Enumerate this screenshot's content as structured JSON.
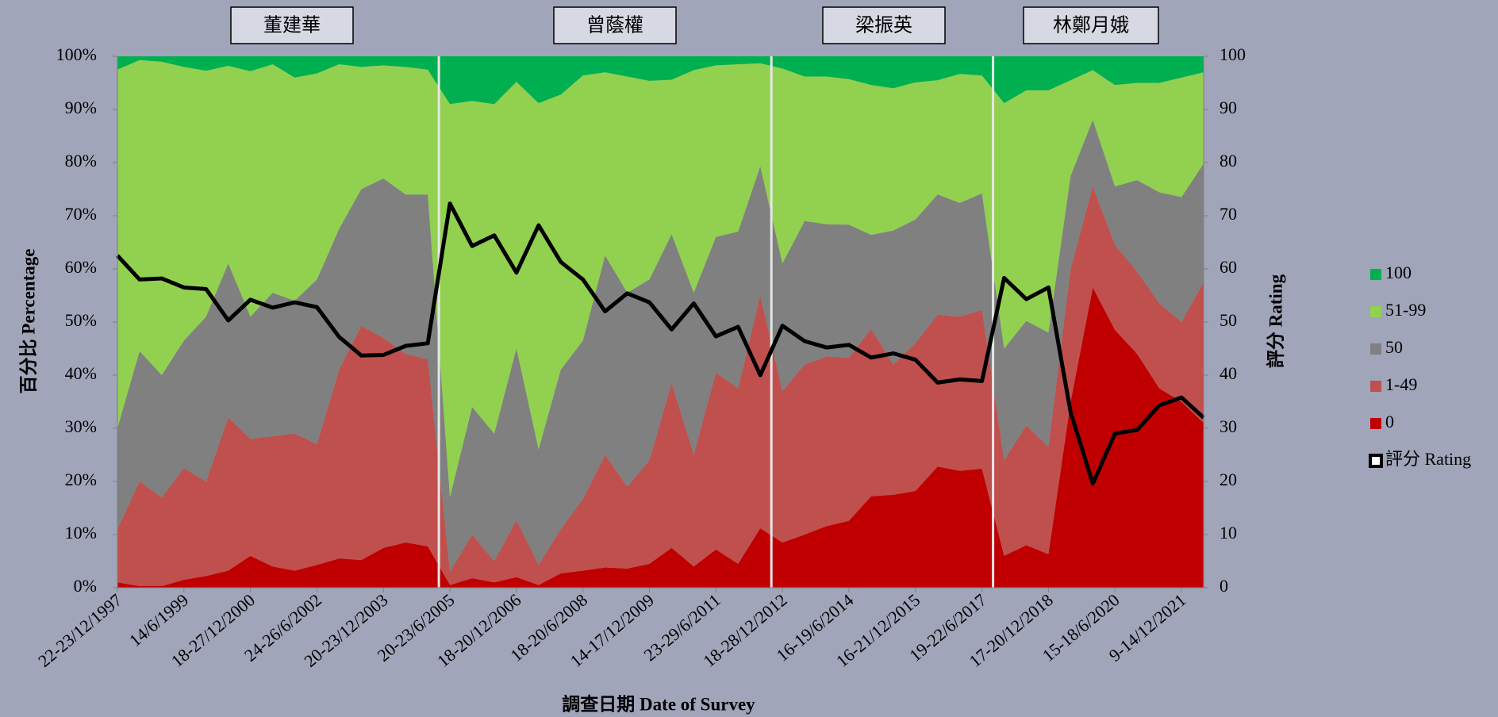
{
  "chart_data": {
    "type": "stacked_area",
    "x_label": "調查日期 Date of Survey",
    "y_label": "百分比 Percentage",
    "y2_label": "評分 Rating",
    "annotations": [
      "董建華",
      "曾蔭權",
      "梁振英",
      "林鄭月娥"
    ],
    "categories": [
      "22-23/12/1997",
      null,
      null,
      "14/6/1999",
      null,
      null,
      "18-27/12/2000",
      null,
      null,
      "24-26/6/2002",
      null,
      null,
      "20-23/12/2003",
      null,
      null,
      "20-23/6/2005",
      null,
      null,
      "18-20/12/2006",
      null,
      null,
      "18-20/6/2008",
      null,
      null,
      "14-17/12/2009",
      null,
      null,
      "23-29/6/2011",
      null,
      null,
      "18-28/12/2012",
      null,
      null,
      "16-19/6/2014",
      null,
      null,
      "16-21/12/2015",
      null,
      null,
      "19-22/6/2017",
      null,
      null,
      "17-20/12/2018",
      null,
      null,
      "15-18/6/2020",
      null,
      null,
      "9-14/12/2021",
      null
    ],
    "series": [
      {
        "name": "0",
        "color": "#c00000",
        "values": [
          1,
          0.3,
          0.3,
          1.5,
          2.2,
          3.2,
          6,
          4,
          3.2,
          4.3,
          5.5,
          5.2,
          7.5,
          8.5,
          7.8,
          0.5,
          1.8,
          1,
          2,
          0.5,
          2.7,
          3.2,
          3.8,
          3.6,
          4.5,
          7.5,
          4,
          7.2,
          4.5,
          11.2,
          8.5,
          10,
          11.6,
          12.6,
          17.2,
          17.5,
          18.2,
          22.8,
          22,
          22.4,
          6,
          8,
          6.3,
          35,
          56.5,
          48.5,
          44,
          37.5,
          35,
          31
        ]
      },
      {
        "name": "1-49",
        "color": "#c0504d",
        "values": [
          10,
          19.7,
          16.7,
          21,
          17.8,
          28.8,
          22,
          24.5,
          25.8,
          22.7,
          35.5,
          44.1,
          39.5,
          35.5,
          35.2,
          2.5,
          8.2,
          4,
          10.7,
          3.8,
          8.3,
          13.5,
          21.2,
          15.4,
          19.5,
          31,
          21,
          33.3,
          33,
          43.8,
          28.5,
          32,
          31.9,
          30.7,
          31.5,
          24.5,
          27.8,
          28.6,
          29,
          29.9,
          18,
          22.5,
          20.2,
          25,
          19,
          16,
          15.5,
          16,
          15,
          26.5
        ]
      },
      {
        "name": "50",
        "color": "#808080",
        "values": [
          19,
          24.5,
          23,
          24,
          31,
          29,
          23,
          27,
          25,
          31,
          26.5,
          25.7,
          30,
          30,
          31,
          14,
          24,
          24,
          32.3,
          21.7,
          30,
          29.8,
          37.5,
          36.5,
          34,
          28,
          30.5,
          25.5,
          29.5,
          24.3,
          24,
          27,
          24.9,
          25,
          17.7,
          25.2,
          23.3,
          22.6,
          21.4,
          21.9,
          21,
          19.7,
          21.5,
          17.5,
          12.5,
          11,
          17.2,
          20.9,
          23.5,
          22.3
        ]
      },
      {
        "name": "51-99",
        "color": "#92d050",
        "values": [
          67.5,
          54.8,
          59,
          51.5,
          46.3,
          37.2,
          46.2,
          43,
          42,
          38.8,
          31,
          23,
          21.3,
          24,
          23.5,
          74,
          57.6,
          62,
          50.2,
          65.2,
          51.8,
          49.9,
          34.5,
          40.7,
          37.4,
          29.1,
          41.9,
          32.3,
          31.5,
          19.4,
          36.7,
          27.2,
          27.8,
          27.4,
          28.2,
          26.8,
          25.8,
          21.5,
          24.3,
          22.2,
          46.2,
          43.4,
          45.6,
          18,
          9.4,
          19.1,
          18.3,
          20.6,
          22.5,
          17.2
        ]
      },
      {
        "name": "100",
        "color": "#00b050",
        "values": [
          2.5,
          0.7,
          1,
          2,
          2.7,
          1.8,
          2.8,
          1.5,
          4,
          3.2,
          1.5,
          2,
          1.7,
          2,
          2.5,
          9,
          8.4,
          9,
          4.8,
          8.8,
          7.2,
          3.6,
          3,
          3.8,
          4.6,
          4.4,
          2.6,
          1.7,
          1.5,
          1.3,
          2.3,
          3.8,
          3.8,
          4.3,
          5.4,
          6,
          4.9,
          4.5,
          3.3,
          3.6,
          8.8,
          6.4,
          6.4,
          4.5,
          2.6,
          5.4,
          5,
          5,
          4,
          3
        ]
      },
      {
        "name": "評分 Rating",
        "type": "line",
        "axis": "y2",
        "color": "#000000",
        "values": [
          62.5,
          58,
          58.2,
          56.5,
          56.2,
          50.3,
          54.2,
          52.7,
          53.7,
          52.8,
          47.2,
          43.7,
          43.8,
          45.5,
          46,
          72.3,
          64.3,
          66.3,
          59.3,
          68.2,
          61.3,
          58,
          52,
          55.4,
          53.7,
          48.6,
          53.5,
          47.3,
          49.1,
          40,
          49.3,
          46.4,
          45.2,
          45.7,
          43.3,
          44.1,
          42.9,
          38.6,
          39.2,
          38.9,
          58.3,
          54.3,
          56.5,
          33,
          19.6,
          29,
          29.7,
          34.3,
          35.8,
          32
        ]
      }
    ],
    "ylim": [
      0,
      100
    ],
    "yticks": [
      {
        "value": 0,
        "label": "0%"
      },
      {
        "value": 10,
        "label": "10%"
      },
      {
        "value": 20,
        "label": "20%"
      },
      {
        "value": 30,
        "label": "30%"
      },
      {
        "value": 40,
        "label": "40%"
      },
      {
        "value": 50,
        "label": "50%"
      },
      {
        "value": 60,
        "label": "60%"
      },
      {
        "value": 70,
        "label": "70%"
      },
      {
        "value": 80,
        "label": "80%"
      },
      {
        "value": 90,
        "label": "90%"
      },
      {
        "value": 100,
        "label": "100%"
      }
    ],
    "y2lim": [
      0,
      100
    ],
    "y2ticks": [
      0,
      10,
      20,
      30,
      40,
      50,
      60,
      70,
      80,
      90,
      100
    ]
  }
}
